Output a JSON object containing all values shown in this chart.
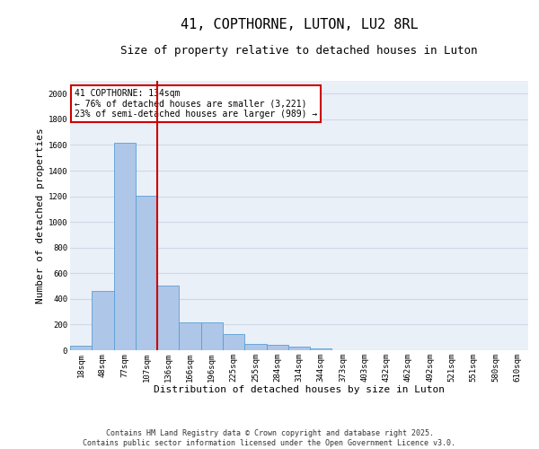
{
  "title": "41, COPTHORNE, LUTON, LU2 8RL",
  "subtitle": "Size of property relative to detached houses in Luton",
  "xlabel": "Distribution of detached houses by size in Luton",
  "ylabel": "Number of detached properties",
  "categories": [
    "18sqm",
    "48sqm",
    "77sqm",
    "107sqm",
    "136sqm",
    "166sqm",
    "196sqm",
    "225sqm",
    "255sqm",
    "284sqm",
    "314sqm",
    "344sqm",
    "373sqm",
    "403sqm",
    "432sqm",
    "462sqm",
    "492sqm",
    "521sqm",
    "551sqm",
    "580sqm",
    "610sqm"
  ],
  "values": [
    35,
    460,
    1620,
    1205,
    505,
    220,
    220,
    125,
    50,
    40,
    25,
    15,
    0,
    0,
    0,
    0,
    0,
    0,
    0,
    0,
    0
  ],
  "bar_color": "#aec6e8",
  "bar_edge_color": "#5a9fd4",
  "vline_color": "#cc0000",
  "vline_x_index": 4,
  "annotation_text": "41 COPTHORNE: 134sqm\n← 76% of detached houses are smaller (3,221)\n23% of semi-detached houses are larger (989) →",
  "annotation_box_color": "#cc0000",
  "annotation_bg": "#ffffff",
  "ylim": [
    0,
    2100
  ],
  "yticks": [
    0,
    200,
    400,
    600,
    800,
    1000,
    1200,
    1400,
    1600,
    1800,
    2000
  ],
  "grid_color": "#d0d8e8",
  "bg_color": "#eaf0f8",
  "footer1": "Contains HM Land Registry data © Crown copyright and database right 2025.",
  "footer2": "Contains public sector information licensed under the Open Government Licence v3.0.",
  "title_fontsize": 11,
  "subtitle_fontsize": 9,
  "axis_label_fontsize": 8,
  "tick_fontsize": 6.5,
  "footer_fontsize": 6,
  "annotation_fontsize": 7
}
